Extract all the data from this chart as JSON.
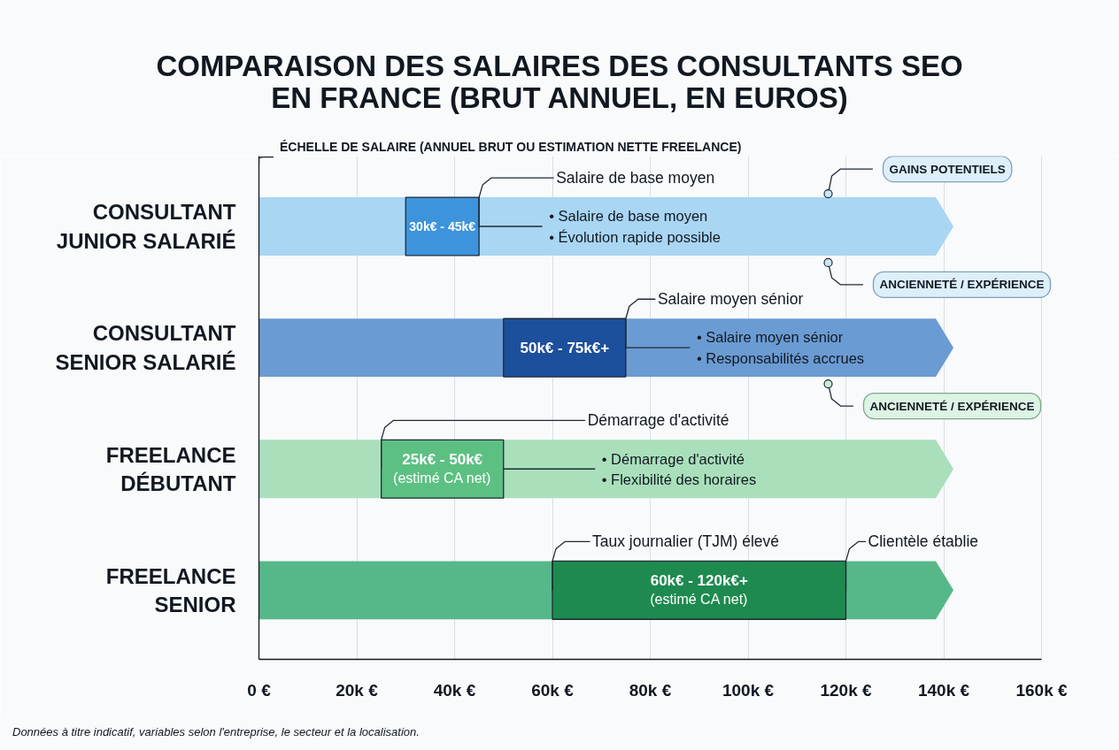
{
  "chart_data": {
    "type": "bar",
    "orientation": "horizontal",
    "title": "COMPARAISON DES SALAIRES DES CONSULTANTS SEO EN FRANCE (BRUT ANNUEL, EN EUROS)",
    "categories": [
      "CONSULTANT JUNIOR SALARIÉ",
      "CONSULTANT SENIOR SALARIÉ",
      "FREELANCE DÉBUTANT",
      "FREELANCE SENIOR"
    ],
    "series": [
      {
        "base": [
          0,
          0,
          0,
          0
        ],
        "values": [
          142,
          142,
          142,
          142
        ],
        "colors": [
          "#a9d6f3",
          "#6b9bd3",
          "#a9e0bb",
          "#56b888"
        ]
      },
      {
        "base": [
          30,
          50,
          25,
          60
        ],
        "values": [
          15,
          25,
          25,
          60
        ],
        "colors": [
          "#3d94dc",
          "#1c4f9c",
          "#5cc083",
          "#1e8a4f"
        ]
      }
    ],
    "xlim": [
      0,
      160
    ],
    "xticks": [
      {
        "value": 0,
        "label": "0 €"
      },
      {
        "value": 20,
        "label": "20k €"
      },
      {
        "value": 40,
        "label": "40k €"
      },
      {
        "value": 60,
        "label": "60k €"
      },
      {
        "value": 80,
        "label": "80k €"
      },
      {
        "value": 100,
        "label": "100k €"
      },
      {
        "value": 120,
        "label": "120k €"
      },
      {
        "value": 140,
        "label": "140k €"
      },
      {
        "value": 160,
        "label": "160k €"
      }
    ],
    "grid": "x",
    "annotations": [
      "ÉCHELLE DE SALAIRE (ANNUEL BRUT OU ESTIMATION NETTE FREELANCE)",
      "GAINS POTENTIELS",
      {
        "text": "Salaire de base moyen",
        "x": 45,
        "y": "CONSULTANT JUNIOR SALARIÉ"
      },
      "30k€ - 45k€",
      "• Salaire de base moyen\n• Évolution rapide possible",
      "ANCIENNETÉ / EXPÉRIENCE",
      {
        "text": "Salaire moyen sénior",
        "x": 75,
        "y": "CONSULTANT SENIOR SALARIÉ"
      },
      "50k€ - 75k€+",
      "• Salaire moyen sénior\n• Responsabilités accrues",
      "ANCIENNETÉ / EXPÉRIENCE",
      {
        "text": "Démarrage d'activité",
        "x": 25,
        "y": "FREELANCE DÉBUTANT"
      },
      "25k€ - 50k€\n(estimé CA net)",
      {
        "text": "• Démarrage d'activité\n• Flexibilité des horaires",
        "x": 50,
        "y": "FREELANCE DÉBUTANT"
      },
      {
        "text": "Taux journalier (TJM) élevé",
        "x": 60,
        "y": "FREELANCE SENIOR"
      },
      {
        "text": "Clientèle établie",
        "x": 120,
        "y": "FREELANCE SENIOR"
      },
      "60k€ - 120k€+\n(estimé CA net)",
      "Données à titre indicatif, variables selon l'entreprise, le secteur et la localisation."
    ]
  }
}
